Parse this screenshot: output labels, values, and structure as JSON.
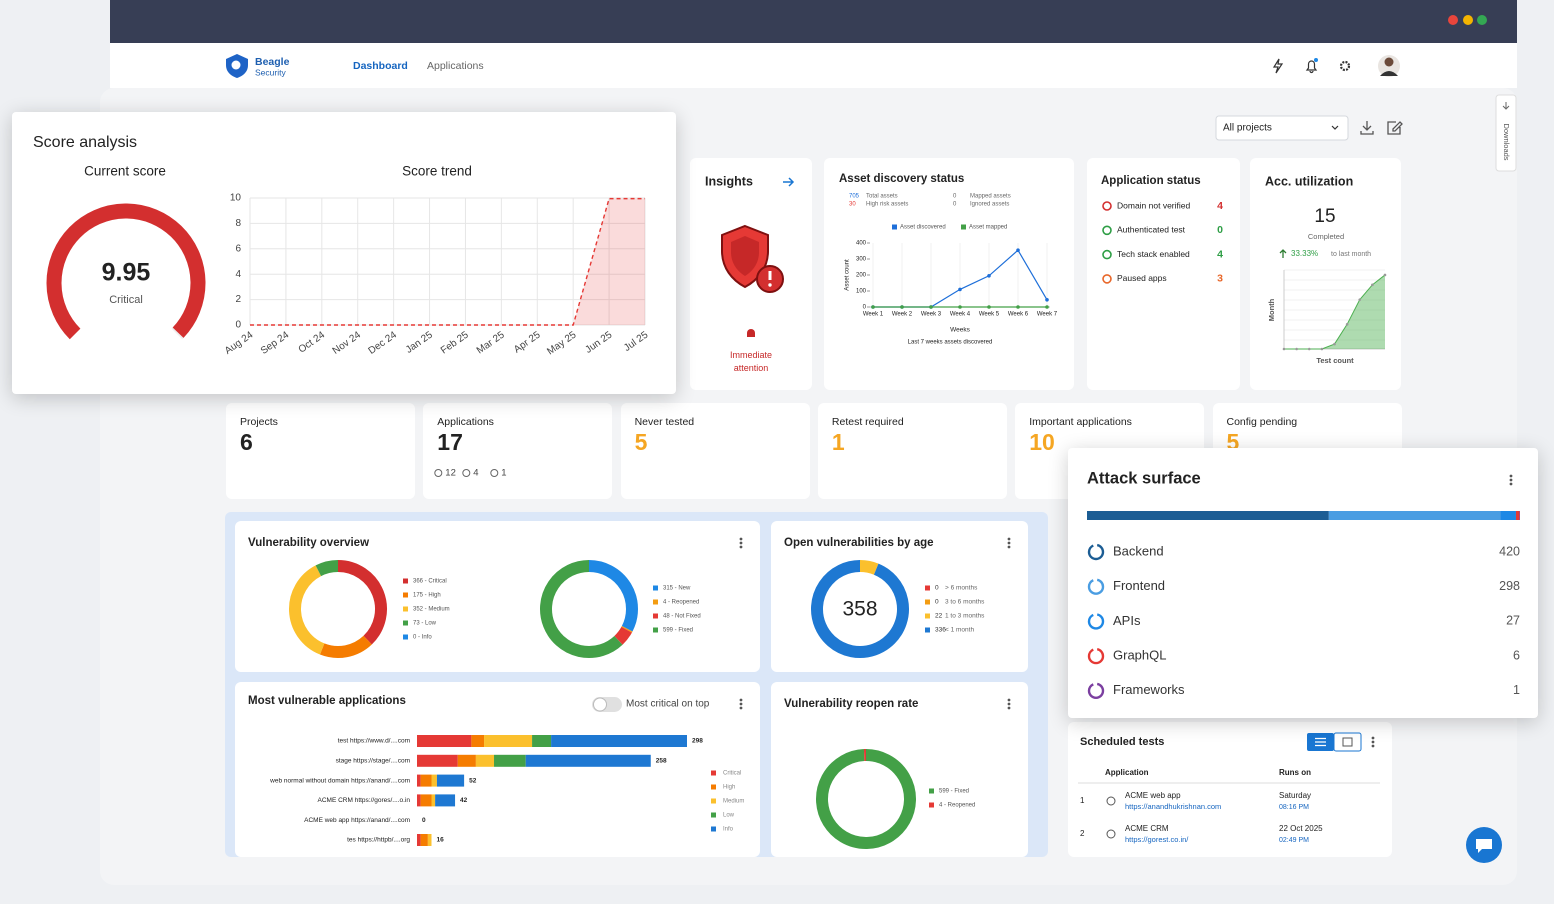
{
  "nav": {
    "brand": [
      "Beagle",
      "Security"
    ],
    "links": [
      "Dashboard",
      "Applications"
    ]
  },
  "toolbar": {
    "project_filter": "All projects",
    "side_tab": "Downloads"
  },
  "score_analysis": {
    "title": "Score analysis",
    "current_score": {
      "title": "Current score",
      "value": 9.95,
      "rating": "Critical"
    },
    "score_trend": {
      "type": "line",
      "title": "Score trend",
      "categories": [
        "Aug 24",
        "Sep 24",
        "Oct 24",
        "Nov 24",
        "Dec 24",
        "Jan 25",
        "Feb 25",
        "Mar 25",
        "Apr 25",
        "May 25",
        "Jun 25",
        "Jul 25"
      ],
      "values": [
        0,
        0,
        0,
        0,
        0,
        0,
        0,
        0,
        0,
        0,
        9.95,
        9.95
      ],
      "ylim": [
        0,
        10
      ],
      "yticks": [
        0,
        2,
        4,
        6,
        8,
        10
      ],
      "color": "#e53935",
      "grid": true
    }
  },
  "insights": {
    "title": "Insights",
    "status": "Immediate attention"
  },
  "asset_discovery": {
    "title": "Asset discovery status",
    "stats": [
      {
        "value": 705,
        "label": "Total assets",
        "color": "#1e6fd9"
      },
      {
        "value": 30,
        "label": "High risk assets",
        "color": "#e53935"
      },
      {
        "value": 0,
        "label": "Mapped assets"
      },
      {
        "value": 0,
        "label": "Ignored assets"
      }
    ],
    "chart": {
      "type": "line",
      "categories": [
        "Week 1",
        "Week 2",
        "Week 3",
        "Week 4",
        "Week 5",
        "Week 6",
        "Week 7"
      ],
      "series": [
        {
          "name": "Asset discovered",
          "color": "#1e6fd9",
          "values": [
            0,
            0,
            0,
            110,
            195,
            355,
            45
          ]
        },
        {
          "name": "Asset mapped",
          "color": "#43a047",
          "values": [
            0,
            0,
            0,
            0,
            0,
            0,
            0
          ]
        }
      ],
      "ylim": [
        0,
        400
      ],
      "yticks": [
        0,
        100,
        200,
        300,
        400
      ],
      "ylabel": "Asset count",
      "xlabel": "Weeks",
      "caption": "Last 7 weeks assets discovered"
    }
  },
  "application_status": {
    "title": "Application status",
    "items": [
      {
        "label": "Domain not verified",
        "value": 4,
        "color": "#d32f2f"
      },
      {
        "label": "Authenticated test",
        "value": 0,
        "color": "#2e9e45"
      },
      {
        "label": "Tech stack enabled",
        "value": 4,
        "color": "#2e9e45"
      },
      {
        "label": "Paused apps",
        "value": 3,
        "color": "#e8672a"
      }
    ]
  },
  "acc_utilization": {
    "title": "Acc. utilization",
    "value": 15,
    "value_label": "Completed",
    "change": "33.33%",
    "change_note": "to last month",
    "chart": {
      "type": "area",
      "values": [
        0,
        0,
        0,
        0,
        1,
        5,
        10,
        13,
        15
      ],
      "ylim": [
        0,
        16
      ],
      "ylabel": "Month",
      "xlabel": "Test count",
      "color": "#4caf50"
    }
  },
  "stats": [
    {
      "label": "Projects",
      "value": 6
    },
    {
      "label": "Applications",
      "value": 17,
      "breakdown": [
        12,
        4,
        1
      ]
    },
    {
      "label": "Never tested",
      "value": 5
    },
    {
      "label": "Retest required",
      "value": 1
    },
    {
      "label": "Important applications",
      "value": 10
    },
    {
      "label": "Config pending",
      "value": 5
    }
  ],
  "vulnerability_overview": {
    "title": "Vulnerability overview",
    "severity": {
      "type": "donut",
      "labels": [
        "366 - Critical",
        "175 - High",
        "352 - Medium",
        "73 - Low",
        "0 - Info"
      ],
      "values": [
        366,
        175,
        352,
        73,
        0
      ],
      "colors": [
        "#d32f2f",
        "#f57c00",
        "#fbc02d",
        "#43a047",
        "#1e88e5"
      ]
    },
    "status": {
      "type": "donut",
      "labels": [
        "315 - New",
        "4 - Reopened",
        "48 - Not Fixed",
        "599 - Fixed"
      ],
      "values": [
        315,
        4,
        48,
        599
      ],
      "colors": [
        "#1e88e5",
        "#f39c12",
        "#e53935",
        "#43a047"
      ]
    }
  },
  "open_by_age": {
    "title": "Open vulnerabilities by age",
    "type": "donut",
    "total": 358,
    "values": [
      0,
      0,
      22,
      336
    ],
    "labels": [
      "> 6 months",
      "3 to 6 months",
      "1 to 3 months",
      "< 1 month"
    ],
    "colors": [
      "#e53935",
      "#f39c12",
      "#fbc02d",
      "#1e78d2"
    ]
  },
  "most_vulnerable": {
    "title": "Most vulnerable applications",
    "toggle": "Most critical on top",
    "type": "stacked-bar",
    "categories": [
      "test https://www.d/....com",
      "stage https://stage/....com",
      "web normal without domain https://anand/....com",
      "ACME CRM https://gores/....o.in",
      "ACME web app https://anand/....com",
      "tes https://httpb/....org"
    ],
    "series": [
      {
        "name": "Critical",
        "color": "#e53935",
        "values": [
          60,
          45,
          4,
          4,
          0,
          4
        ]
      },
      {
        "name": "High",
        "color": "#f57c00",
        "values": [
          14,
          20,
          12,
          12,
          0,
          8
        ]
      },
      {
        "name": "Medium",
        "color": "#fbc02d",
        "values": [
          53,
          20,
          6,
          4,
          0,
          4
        ]
      },
      {
        "name": "Low",
        "color": "#43a047",
        "values": [
          21,
          35,
          0,
          0,
          0,
          0
        ]
      },
      {
        "name": "Info",
        "color": "#1e78d2",
        "values": [
          150,
          138,
          30,
          22,
          0,
          0
        ]
      }
    ],
    "totals": [
      298,
      258,
      52,
      42,
      0,
      16
    ]
  },
  "reopen_rate": {
    "title": "Vulnerability reopen rate",
    "type": "donut",
    "labels": [
      "599 - Fixed",
      "4 - Reopened"
    ],
    "values": [
      599,
      4
    ],
    "colors": [
      "#43a047",
      "#e53935"
    ]
  },
  "attack_surface": {
    "title": "Attack surface",
    "type": "stacked-bar",
    "categories": [
      "Backend",
      "Frontend",
      "APIs",
      "GraphQL",
      "Frameworks"
    ],
    "values": [
      420,
      298,
      27,
      6,
      1
    ],
    "colors": [
      "#1c5d94",
      "#4a9de2",
      "#1e88e5",
      "#e53935",
      "#7b3fa0"
    ]
  },
  "scheduled_tests": {
    "title": "Scheduled tests",
    "columns": [
      "Application",
      "Runs on"
    ],
    "rows": [
      {
        "index": 1,
        "name": "ACME web app",
        "url": "https://anandhukrishnan.com",
        "day": "Saturday",
        "time": "08:16 PM"
      },
      {
        "index": 2,
        "name": "ACME CRM",
        "url": "https://gorest.co.in/",
        "day": "22 Oct 2025",
        "time": "02:49 PM"
      }
    ]
  }
}
